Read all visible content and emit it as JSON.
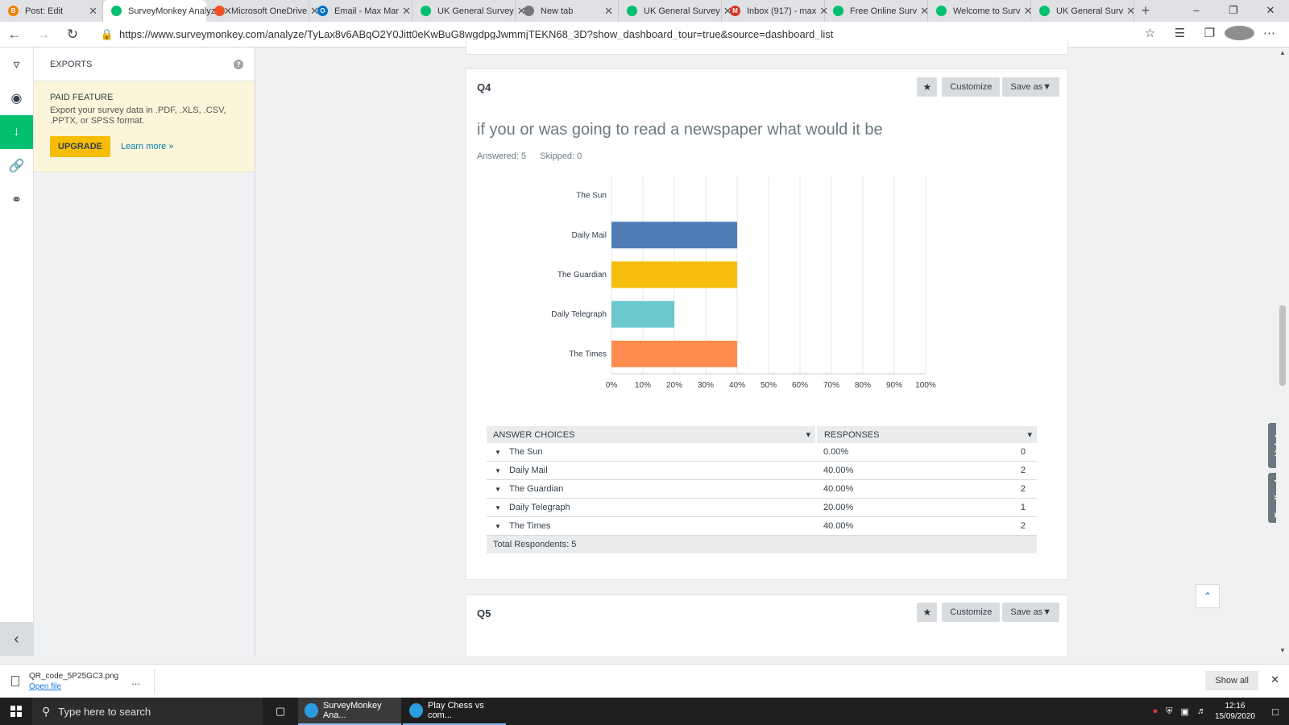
{
  "browser": {
    "tabs": [
      {
        "label": "Post: Edit",
        "color": "#f57d00",
        "glyph": "B",
        "active": false
      },
      {
        "label": "SurveyMonkey Analyze",
        "color": "#00bf6f",
        "glyph": "",
        "active": true
      },
      {
        "label": "Microsoft OneDrive",
        "color": "#f25022",
        "glyph": "",
        "active": false
      },
      {
        "label": "Email - Max Mar",
        "color": "#0072c6",
        "glyph": "O",
        "active": false
      },
      {
        "label": "UK General Survey",
        "color": "#00bf6f",
        "glyph": "",
        "active": false
      },
      {
        "label": "New tab",
        "color": "#777777",
        "glyph": "",
        "active": false
      },
      {
        "label": "UK General Survey",
        "color": "#00bf6f",
        "glyph": "",
        "active": false
      },
      {
        "label": "Inbox (917) - max",
        "color": "#d93025",
        "glyph": "M",
        "active": false
      },
      {
        "label": "Free Online Surv",
        "color": "#00bf6f",
        "glyph": "",
        "active": false
      },
      {
        "label": "Welcome to Surv",
        "color": "#00bf6f",
        "glyph": "",
        "active": false
      },
      {
        "label": "UK General Surv",
        "color": "#00bf6f",
        "glyph": "",
        "active": false
      }
    ],
    "new_tab": "+",
    "url": "https://www.surveymonkey.com/analyze/TyLax8v6ABqO2Y0Jitt0eKwBuG8wgdpgJwmmjTEKN68_3D?show_dashboard_tour=true&source=dashboard_list"
  },
  "exports": {
    "title": "EXPORTS",
    "help": "?",
    "paid_title": "PAID FEATURE",
    "paid_desc": "Export your survey data in .PDF, .XLS, .CSV, .PPTX, or SPSS format.",
    "upgrade_label": "UPGRADE",
    "learn_more": "Learn more »"
  },
  "q4": {
    "label": "Q4",
    "customize": "Customize",
    "save_as": "Save as",
    "title": "if you or was going to read a newspaper what would it be",
    "answered": "Answered: 5",
    "skipped": "Skipped: 0"
  },
  "chart_data": {
    "type": "bar",
    "orientation": "horizontal",
    "categories": [
      "The Sun",
      "Daily Mail",
      "The Guardian",
      "Daily Telegraph",
      "The Times"
    ],
    "values": [
      0,
      40,
      40,
      20,
      40
    ],
    "colors": [
      "#507cb6",
      "#507cb6",
      "#f6bd0f",
      "#6bc8cd",
      "#ff8b4f"
    ],
    "xlim": [
      0,
      100
    ],
    "xticks": [
      "0%",
      "10%",
      "20%",
      "30%",
      "40%",
      "50%",
      "60%",
      "70%",
      "80%",
      "90%",
      "100%"
    ],
    "grid": true
  },
  "table": {
    "col_answer": "ANSWER CHOICES",
    "col_responses": "RESPONSES",
    "rows": [
      {
        "label": "The Sun",
        "pct": "0.00%",
        "count": "0"
      },
      {
        "label": "Daily Mail",
        "pct": "40.00%",
        "count": "2"
      },
      {
        "label": "The Guardian",
        "pct": "40.00%",
        "count": "2"
      },
      {
        "label": "Daily Telegraph",
        "pct": "20.00%",
        "count": "1"
      },
      {
        "label": "The Times",
        "pct": "40.00%",
        "count": "2"
      }
    ],
    "total": "Total Respondents: 5"
  },
  "q5": {
    "label": "Q5",
    "customize": "Customize",
    "save_as": "Save as"
  },
  "side_tabs": {
    "help": "Help!",
    "feedback": "Feedback"
  },
  "download": {
    "filename": "QR_code_5P25GC3.png",
    "open": "Open file",
    "more": "...",
    "show_all": "Show all"
  },
  "taskbar": {
    "search_placeholder": "Type here to search",
    "apps": [
      "SurveyMonkey Ana...",
      "Play Chess vs com..."
    ],
    "time": "12:16",
    "date": "15/09/2020"
  }
}
